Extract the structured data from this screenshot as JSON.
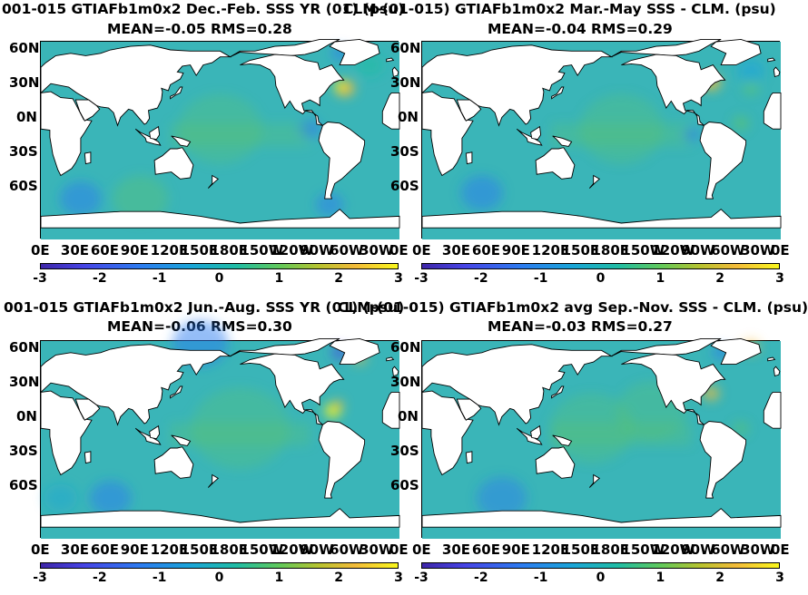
{
  "panels": [
    {
      "title": "001-015 GTIAFb1m0x2  Dec.-Feb. SSS YR (01) (psu)",
      "stats": "MEAN=-0.05   RMS=0.28",
      "lat_labels": [
        "60N",
        "30N",
        "0N",
        "30S",
        "60S"
      ],
      "lon_labels": [
        "0E",
        "30E",
        "60E",
        "90E",
        "120E",
        "150E",
        "180E",
        "150W",
        "120W",
        "90W",
        "60W",
        "30W",
        "0E"
      ],
      "colorbar_ticks": [
        "-3",
        "-2",
        "-1",
        "0",
        "1",
        "2",
        "3"
      ]
    },
    {
      "title": "CLM-(01-015) GTIAFb1m0x2 Mar.-May SSS - CLM. (psu)",
      "stats": "MEAN=-0.04   RMS=0.29",
      "lat_labels": [
        "60N",
        "30N",
        "0N",
        "30S",
        "60S"
      ],
      "lon_labels": [
        "0E",
        "30E",
        "60E",
        "90E",
        "120E",
        "150E",
        "180E",
        "150W",
        "120W",
        "90W",
        "60W",
        "30W",
        "0E"
      ],
      "colorbar_ticks": [
        "-3",
        "-2",
        "-1",
        "0",
        "1",
        "2",
        "3"
      ]
    },
    {
      "title": "001-015 GTIAFb1m0x2 Jun.-Aug. SSS YR (01) (psu)",
      "stats": "MEAN=-0.06   RMS=0.30",
      "lat_labels": [
        "60N",
        "30N",
        "0N",
        "30S",
        "60S"
      ],
      "lon_labels": [
        "0E",
        "30E",
        "60E",
        "90E",
        "120E",
        "150E",
        "180E",
        "150W",
        "120W",
        "90W",
        "60W",
        "30W",
        "0E"
      ],
      "colorbar_ticks": [
        "-3",
        "-2",
        "-1",
        "0",
        "1",
        "2",
        "3"
      ]
    },
    {
      "title": "CLM-(01-015) GTIAFb1m0x2 avg Sep.-Nov. SSS - CLM. (psu)",
      "stats": "MEAN=-0.03   RMS=0.27",
      "lat_labels": [
        "60N",
        "30N",
        "0N",
        "30S",
        "60S"
      ],
      "lon_labels": [
        "0E",
        "30E",
        "60E",
        "90E",
        "120E",
        "150E",
        "180E",
        "150W",
        "120W",
        "90W",
        "60W",
        "30W",
        "0E"
      ],
      "colorbar_ticks": [
        "-3",
        "-2",
        "-1",
        "0",
        "1",
        "2",
        "3"
      ]
    }
  ],
  "colors": {
    "ocean_base": "#3ab5b8",
    "land": "#ffffff",
    "colormap": [
      "#3e26a8",
      "#4744e6",
      "#2c7cf0",
      "#1aa5d8",
      "#20bda4",
      "#62c95a",
      "#b8c32f",
      "#f3bb3a",
      "#f9f71c"
    ]
  },
  "colorbar_range": [
    -3,
    3
  ]
}
